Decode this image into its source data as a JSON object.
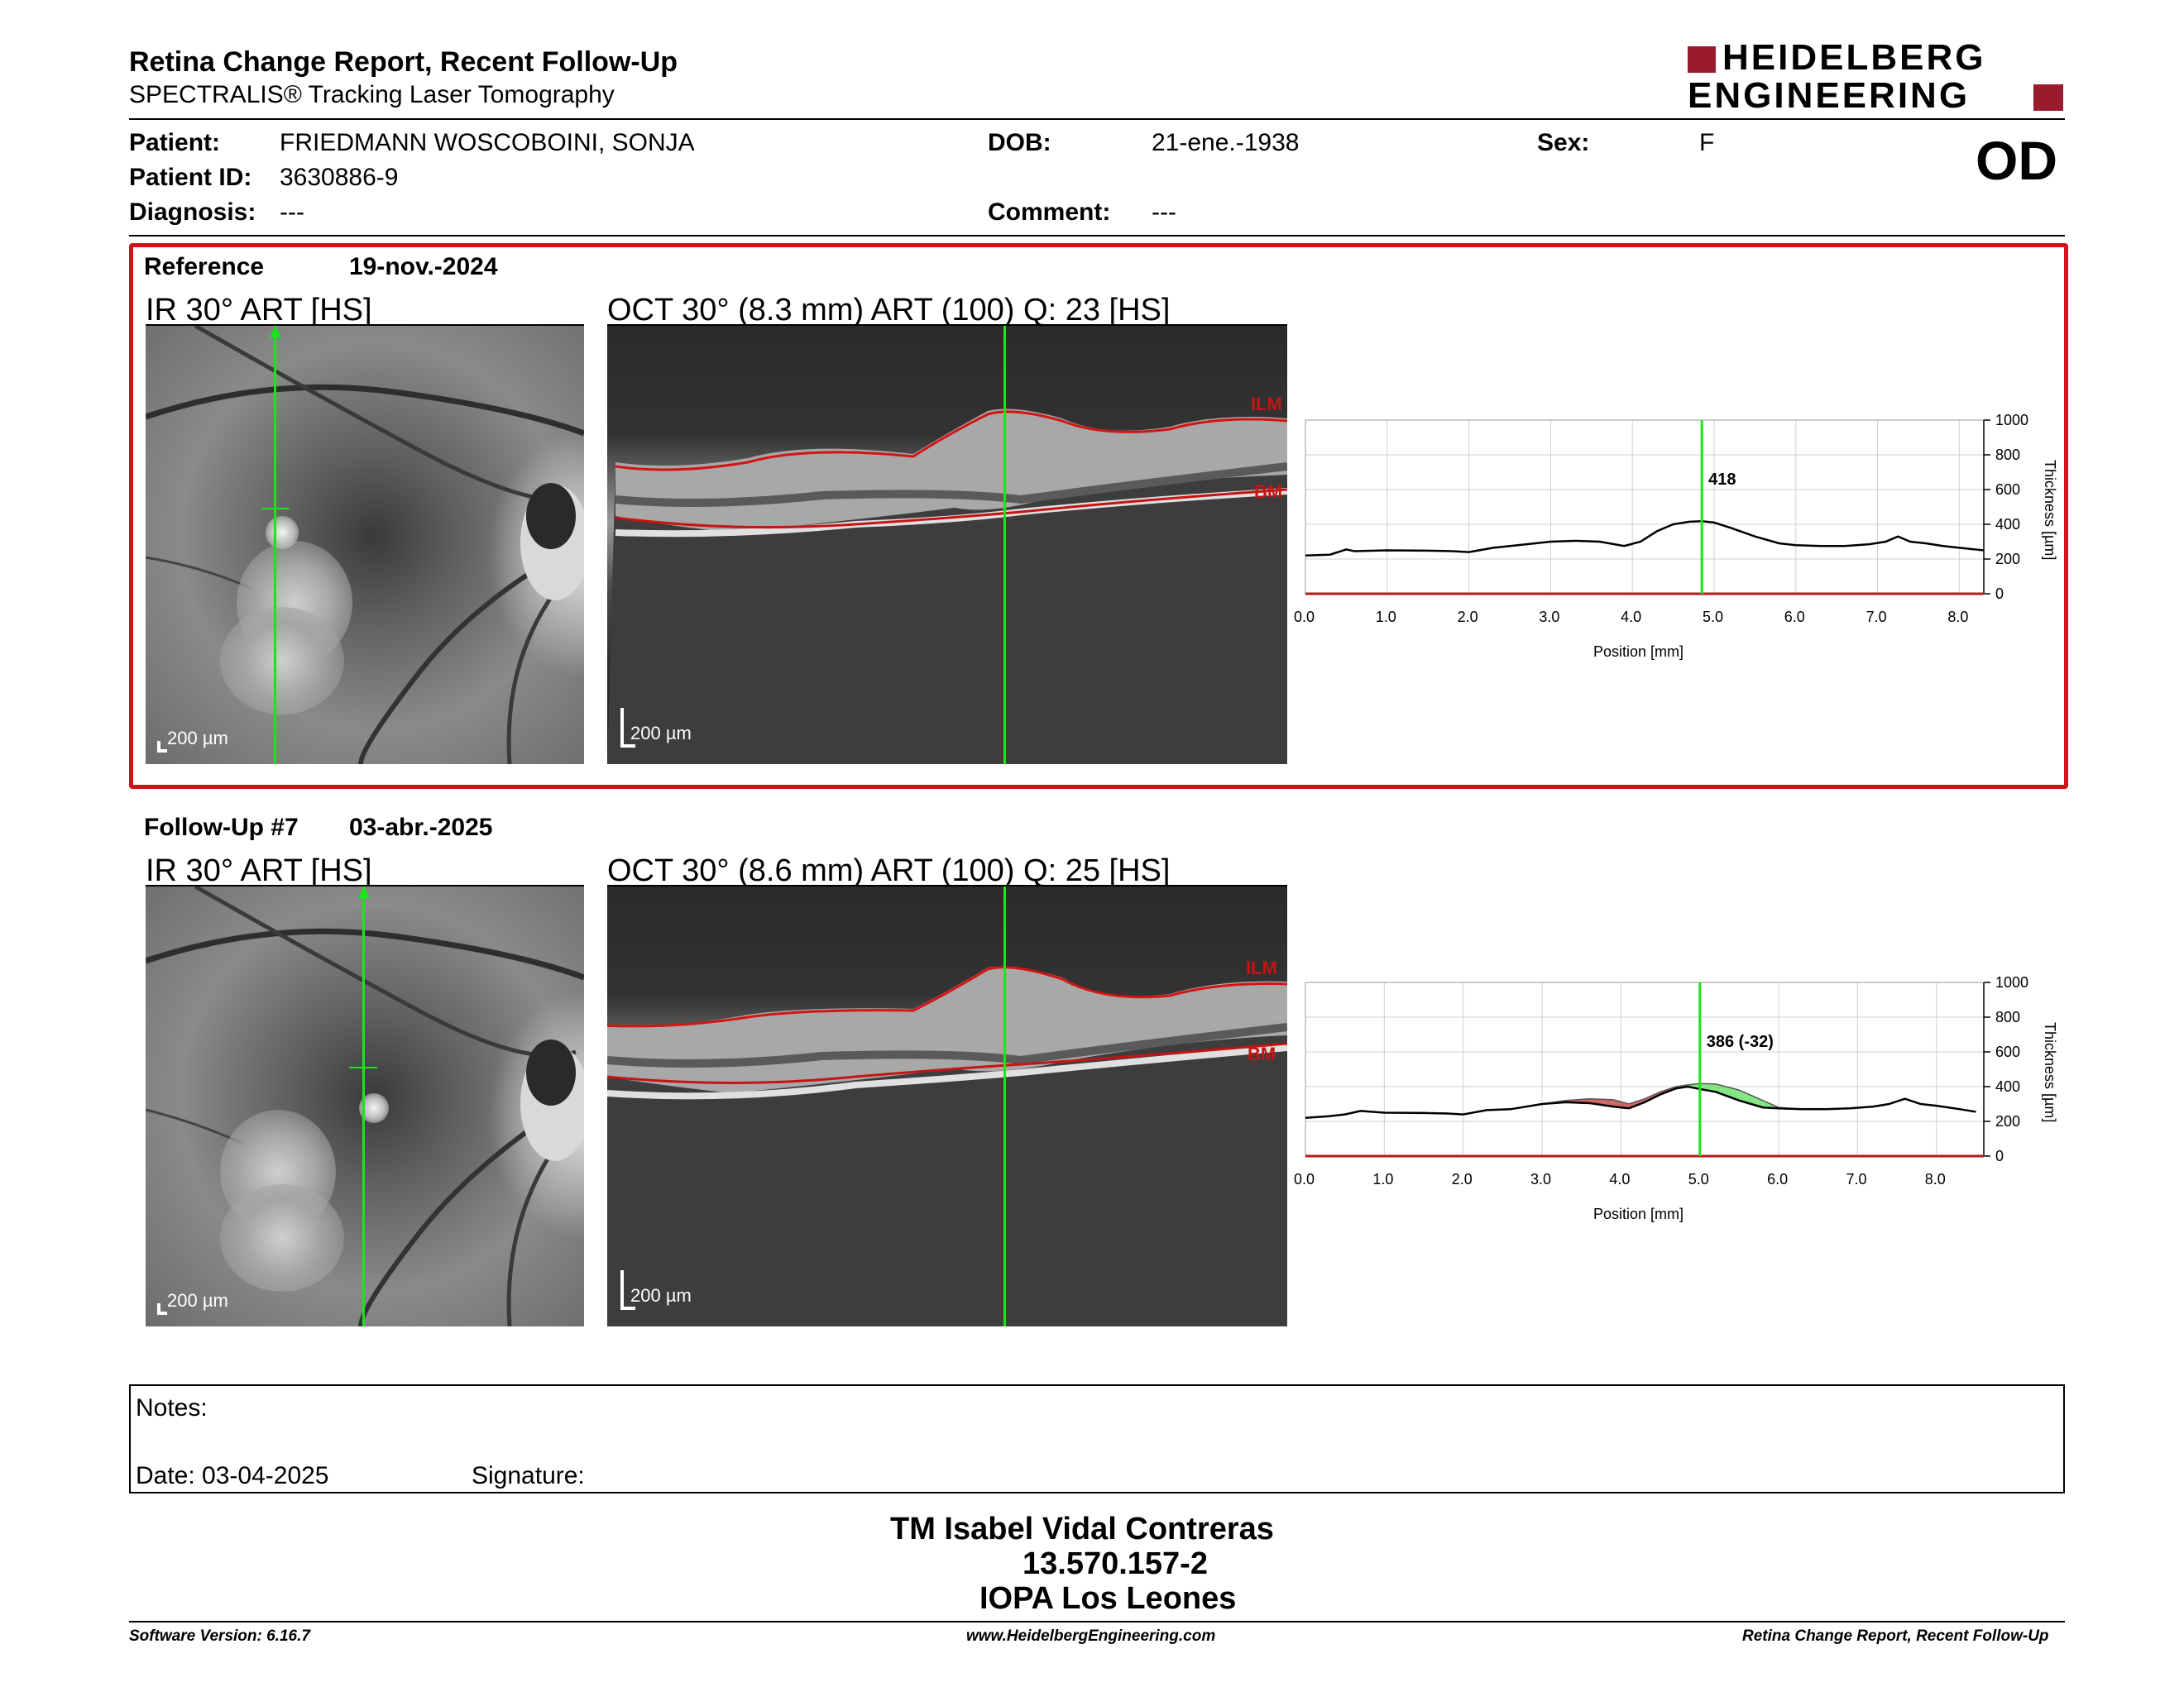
{
  "header": {
    "title": "Retina Change Report, Recent Follow-Up",
    "subtitle": "SPECTRALIS® Tracking Laser Tomography",
    "brand_line1": "HEIDELBERG",
    "brand_line2": "ENGINEERING",
    "brand_color": "#9b1b2e",
    "eye": "OD"
  },
  "patient": {
    "patient_label": "Patient:",
    "patient_value": "FRIEDMANN WOSCOBOINI,  SONJA",
    "id_label": "Patient ID:",
    "id_value": "3630886-9",
    "diagnosis_label": "Diagnosis:",
    "diagnosis_value": "---",
    "dob_label": "DOB:",
    "dob_value": "21-ene.-1938",
    "comment_label": "Comment:",
    "comment_value": "---",
    "sex_label": "Sex:",
    "sex_value": "F"
  },
  "reference": {
    "label": "Reference",
    "date": "19-nov.-2024",
    "ir_caption": "IR 30° ART [HS]",
    "oct_caption": "OCT 30° (8.3 mm) ART (100) Q: 23 [HS]",
    "ir_scale": "200 µm",
    "oct_scale": "200 µm",
    "ilm_label": "ILM",
    "bm_label": "BM",
    "highlight_color": "#d0121b"
  },
  "followup": {
    "label": "Follow-Up #7",
    "date": "03-abr.-2025",
    "ir_caption": "IR 30° ART [HS]",
    "oct_caption": "OCT 30° (8.6 mm) ART (100) Q: 25 [HS]",
    "ir_scale": "200 µm",
    "oct_scale": "200 µm",
    "ilm_label": "ILM",
    "bm_label": "BM"
  },
  "chart_data": [
    {
      "type": "line",
      "xlabel": "Position [mm]",
      "ylabel": "Thickness [µm]",
      "xlim": [
        0,
        8.3
      ],
      "ylim": [
        0,
        1000
      ],
      "xticks": [
        "0.0",
        "1.0",
        "2.0",
        "3.0",
        "4.0",
        "5.0",
        "6.0",
        "7.0",
        "8.0"
      ],
      "yticks": [
        "0",
        "200",
        "400",
        "600",
        "800",
        "1000"
      ],
      "grid": true,
      "marker_x": 4.85,
      "marker_label": "418",
      "line_color": "#000000",
      "marker_color": "#19e619",
      "series": [
        {
          "x": [
            0.0,
            0.3,
            0.5,
            0.6,
            1.0,
            1.5,
            1.8,
            2.0,
            2.3,
            2.6,
            3.0,
            3.3,
            3.6,
            3.9,
            4.1,
            4.3,
            4.5,
            4.7,
            4.85,
            5.0,
            5.2,
            5.5,
            5.8,
            6.0,
            6.3,
            6.6,
            6.9,
            7.1,
            7.25,
            7.4,
            7.6,
            7.8,
            8.0,
            8.3
          ],
          "y": [
            220,
            225,
            255,
            245,
            250,
            248,
            245,
            240,
            265,
            280,
            300,
            305,
            300,
            275,
            300,
            360,
            400,
            415,
            418,
            410,
            380,
            330,
            290,
            280,
            275,
            275,
            285,
            300,
            330,
            300,
            290,
            275,
            265,
            250
          ]
        }
      ]
    },
    {
      "type": "area",
      "xlabel": "Position [mm]",
      "ylabel": "Thickness [µm]",
      "xlim": [
        0,
        8.6
      ],
      "ylim": [
        0,
        1000
      ],
      "xticks": [
        "0.0",
        "1.0",
        "2.0",
        "3.0",
        "4.0",
        "5.0",
        "6.0",
        "7.0",
        "8.0"
      ],
      "yticks": [
        "0",
        "200",
        "400",
        "600",
        "800",
        "1000"
      ],
      "grid": true,
      "marker_x": 5.0,
      "marker_label": "386 (-32)",
      "line_color": "#000000",
      "marker_color": "#19e619",
      "thinner_color": "#c84b4b",
      "thicker_color": "#6ee06e",
      "series": [
        {
          "name": "",
          "x": [
            0.0,
            0.3,
            0.5,
            0.7,
            1.0,
            1.5,
            1.8,
            2.0,
            2.3,
            2.6,
            3.0,
            3.3,
            3.6,
            3.9,
            4.1,
            4.3,
            4.5,
            4.7,
            4.85,
            5.0,
            5.2,
            5.5,
            5.8,
            6.0,
            6.3,
            6.6,
            6.9,
            7.2,
            7.4,
            7.6,
            7.8,
            8.0,
            8.3,
            8.5
          ],
          "y": [
            220,
            230,
            240,
            260,
            250,
            248,
            245,
            240,
            265,
            270,
            300,
            310,
            305,
            285,
            275,
            310,
            355,
            390,
            400,
            386,
            370,
            320,
            280,
            275,
            270,
            270,
            275,
            285,
            300,
            330,
            300,
            290,
            270,
            255
          ]
        },
        {
          "name": "",
          "x": [
            0.0,
            0.3,
            0.5,
            0.7,
            1.0,
            1.5,
            1.8,
            2.0,
            2.3,
            2.6,
            3.0,
            3.3,
            3.6,
            3.9,
            4.1,
            4.3,
            4.5,
            4.7,
            4.85,
            5.0,
            5.2,
            5.5,
            5.8,
            6.0,
            6.3,
            6.6,
            6.9,
            7.2,
            7.4,
            7.6,
            7.8,
            8.0,
            8.3,
            8.5
          ],
          "y": [
            220,
            230,
            240,
            260,
            250,
            248,
            245,
            240,
            265,
            270,
            300,
            320,
            330,
            325,
            300,
            330,
            370,
            400,
            410,
            418,
            415,
            380,
            320,
            280,
            270,
            270,
            275,
            285,
            300,
            330,
            300,
            290,
            270,
            255
          ]
        }
      ]
    }
  ],
  "notes": {
    "notes_label": "Notes:",
    "date_label": "Date: 03-04-2025",
    "signature_label": "Signature:"
  },
  "stamp": {
    "line1": "TM Isabel Vidal Contreras",
    "line2": "13.570.157-2",
    "line3": "IOPA Los Leones"
  },
  "footer": {
    "software": "Software Version: 6.16.7",
    "website": "www.HeidelbergEngineering.com",
    "report": "Retina Change Report, Recent Follow-Up"
  }
}
